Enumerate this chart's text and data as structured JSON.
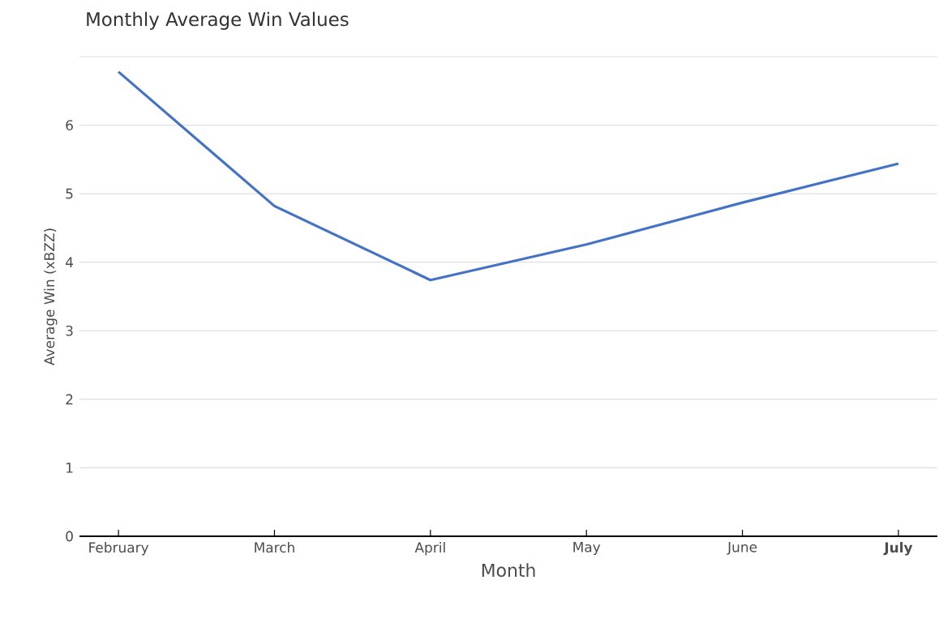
{
  "chart_data": {
    "type": "line",
    "title": "Monthly Average Win Values",
    "xlabel": "Month",
    "ylabel": "Average Win (xBZZ)",
    "categories": [
      "February",
      "March",
      "April",
      "May",
      "June",
      "**July**"
    ],
    "series": [
      {
        "color": "#4472c4",
        "values": [
          6.78,
          4.82,
          3.74,
          4.26,
          4.87,
          5.44
        ]
      }
    ],
    "ylim": [
      0,
      7
    ],
    "yticks": [
      0,
      1,
      2,
      3,
      4,
      5,
      6,
      {
        "value": 7,
        "label": null
      }
    ],
    "grid": "y",
    "marker": "none",
    "line_style": "solid"
  }
}
